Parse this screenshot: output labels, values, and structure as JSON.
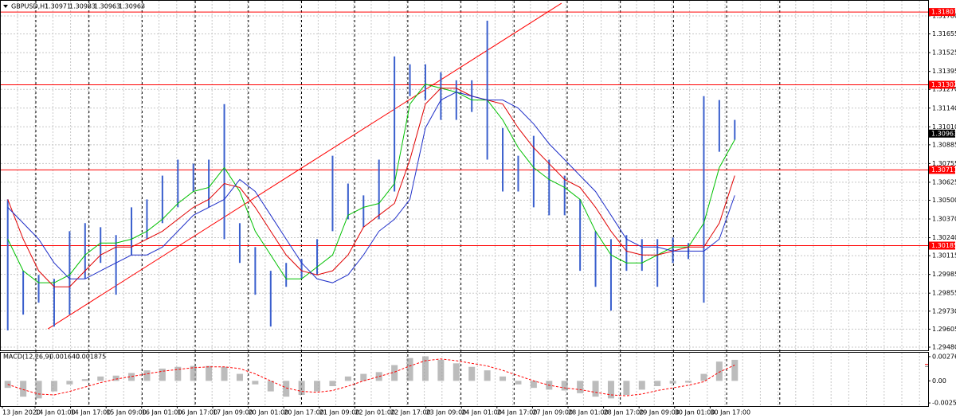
{
  "chart_data": {
    "type": "ohlc",
    "header": {
      "symbol": "GBPUSD,H1",
      "ohlc": [
        1.30971,
        1.30983,
        1.30963,
        1.30963
      ]
    },
    "xlim": [
      0,
      60
    ],
    "ylim": [
      1.29458,
      1.31885
    ],
    "yticks": [
      {
        "value": 1.3178,
        "label": "1.31780"
      },
      1.31655,
      1.31525,
      1.31395,
      {
        "value": 1.3127,
        "label": "1.31270"
      },
      {
        "value": 1.3114,
        "label": "1.31140"
      },
      {
        "value": 1.3101,
        "label": "1.31010"
      },
      1.30885,
      1.30755,
      1.30625,
      {
        "value": 1.305,
        "label": "1.30500"
      },
      {
        "value": 1.3037,
        "label": "1.30370"
      },
      {
        "value": 1.3024,
        "label": "1.30240"
      },
      1.30115,
      1.29985,
      1.29855,
      {
        "value": 1.2973,
        "label": "1.29730"
      },
      1.29605,
      {
        "value": 1.2948,
        "label": "1.29480"
      }
    ],
    "time_labels": [
      "13 Jan 2020",
      "14 Jan 01:00",
      "14 Jan 17:00",
      "15 Jan 09:00",
      "16 Jan 01:00",
      "16 Jan 17:00",
      "17 Jan 09:00",
      "20 Jan 01:00",
      "20 Jan 17:00",
      "21 Jan 09:00",
      "22 Jan 01:00",
      "22 Jan 17:00",
      "23 Jan 09:00",
      "24 Jan 01:00",
      "24 Jan 17:00",
      "27 Jan 09:00",
      "28 Jan 01:00",
      "28 Jan 17:00",
      "29 Jan 09:00",
      "30 Jan 01:00",
      "30 Jan 17:00"
    ],
    "bar_color": "#3a5fcd",
    "highs": [
      1.30506,
      1.3001,
      1.29982,
      1.29954,
      1.30285,
      1.30341,
      1.30313,
      1.30258,
      1.30451,
      1.30506,
      1.30671,
      1.30782,
      1.30754,
      1.30782,
      1.31168,
      1.30341,
      1.30175,
      1.3001,
      1.30065,
      1.30092,
      1.3023,
      1.30809,
      1.30616,
      1.30534,
      1.30782,
      1.31499,
      1.31444,
      1.31444,
      1.31389,
      1.31333,
      1.31333,
      1.31747,
      1.31002,
      1.30809,
      1.30947,
      1.30782,
      1.30671,
      1.30506,
      1.30285,
      1.3023,
      1.30258,
      1.3023,
      1.3023,
      1.30241,
      1.30203,
      1.31223,
      1.31196,
      1.31058
    ],
    "lows": [
      1.29596,
      1.29706,
      1.29789,
      1.29623,
      1.29706,
      1.29954,
      1.30065,
      1.29844,
      1.3012,
      1.3023,
      1.30341,
      1.30451,
      1.30561,
      1.30451,
      1.3023,
      1.30065,
      1.29844,
      1.29623,
      1.29899,
      1.29954,
      1.29982,
      1.30285,
      1.30368,
      1.30313,
      1.30368,
      1.30561,
      1.31223,
      1.31196,
      1.31058,
      1.31058,
      1.31113,
      1.30782,
      1.30561,
      1.30561,
      1.30451,
      1.30396,
      1.30396,
      1.3001,
      1.29899,
      1.29734,
      1.3001,
      1.3001,
      1.29899,
      1.30065,
      1.30092,
      1.29789,
      1.30837,
      1.3092
    ],
    "moving_averages": [
      {
        "color": "#00c000",
        "values": [
          1.3023,
          1.3001,
          1.29927,
          1.29927,
          1.29982,
          1.3012,
          1.30203,
          1.30203,
          1.3023,
          1.30285,
          1.30368,
          1.30478,
          1.30561,
          1.30589,
          1.30727,
          1.30561,
          1.30285,
          1.3012,
          1.29954,
          1.29954,
          1.30037,
          1.3012,
          1.30396,
          1.30451,
          1.30478,
          1.30616,
          1.31168,
          1.31306,
          1.31278,
          1.31251,
          1.31196,
          1.31196,
          1.31058,
          1.30865,
          1.30727,
          1.30644,
          1.30589,
          1.30506,
          1.30285,
          1.3012,
          1.30065,
          1.30065,
          1.3012,
          1.30175,
          1.30175,
          1.30341,
          1.30727,
          1.3092
        ]
      },
      {
        "color": "#e00000",
        "values": [
          1.30506,
          1.3023,
          1.3001,
          1.29899,
          1.29899,
          1.3001,
          1.3012,
          1.30175,
          1.30175,
          1.3023,
          1.30285,
          1.30368,
          1.30451,
          1.30506,
          1.30616,
          1.30589,
          1.30451,
          1.30285,
          1.3012,
          1.3001,
          1.29982,
          1.3001,
          1.3012,
          1.30313,
          1.30396,
          1.30478,
          1.30782,
          1.31168,
          1.31278,
          1.31278,
          1.31223,
          1.31196,
          1.31168,
          1.31002,
          1.30865,
          1.30754,
          1.30644,
          1.30589,
          1.30451,
          1.30285,
          1.30147,
          1.3012,
          1.3012,
          1.30147,
          1.30175,
          1.30175,
          1.30341,
          1.30671
        ]
      },
      {
        "color": "#1f2fc8",
        "values": [
          1.30451,
          1.30341,
          1.3023,
          1.30065,
          1.29954,
          1.29954,
          1.3001,
          1.30065,
          1.3012,
          1.3012,
          1.30175,
          1.30285,
          1.30396,
          1.30451,
          1.30506,
          1.30644,
          1.30561,
          1.30396,
          1.3023,
          1.30065,
          1.29954,
          1.29927,
          1.29982,
          1.3012,
          1.30285,
          1.30368,
          1.30506,
          1.31002,
          1.31196,
          1.31251,
          1.31223,
          1.31196,
          1.31196,
          1.3114,
          1.3103,
          1.30892,
          1.30782,
          1.30671,
          1.30561,
          1.30396,
          1.3023,
          1.30175,
          1.30175,
          1.30147,
          1.30147,
          1.30147,
          1.3023,
          1.30534
        ]
      }
    ],
    "levels": [
      1.31807,
      1.31302,
      1.30711,
      1.30185
    ],
    "level_color": "#ff0000",
    "last_price": 1.30963,
    "trendline": {
      "x": [
        3.1,
        36.3
      ],
      "y": [
        1.29607,
        1.31868
      ],
      "color": "#ff0000"
    },
    "macd": {
      "title": "MACD(12,26,9)",
      "readout": [
        0.00164,
        0.001875
      ],
      "readout_labels": [
        "0.001640",
        "0.001875"
      ],
      "ylim": [
        -0.00287,
        0.00321
      ],
      "yticks": [
        0.002766,
        {
          "value": 0,
          "label": "0.00"
        },
        -0.002518
      ],
      "histogram_color": "#a0a0a0",
      "signal_color": "#ff0000",
      "histogram": [
        -0.0008,
        -0.0018,
        -0.002,
        -0.0012,
        -0.0004,
        0.0002,
        0.0005,
        0.0006,
        0.0009,
        0.0012,
        0.0014,
        0.0016,
        0.0017,
        0.0017,
        0.0016,
        0.0008,
        -0.0004,
        -0.0012,
        -0.0018,
        -0.0016,
        -0.0012,
        -0.0006,
        0.0005,
        0.0008,
        0.001,
        0.0018,
        0.0026,
        0.0028,
        0.0024,
        0.002,
        0.0016,
        0.0012,
        0.0005,
        -0.0004,
        -0.0008,
        -0.001,
        -0.0011,
        -0.0014,
        -0.0018,
        -0.002,
        -0.0016,
        -0.001,
        -0.0006,
        -0.0003,
        -0.0002,
        0.0008,
        0.0022,
        0.0024
      ],
      "signal": [
        -0.0004,
        -0.001,
        -0.0015,
        -0.0016,
        -0.0012,
        -0.0007,
        -0.0002,
        0.0002,
        0.0005,
        0.0008,
        0.0011,
        0.0013,
        0.0015,
        0.0016,
        0.0016,
        0.0014,
        0.0008,
        0,
        -0.0008,
        -0.0012,
        -0.0013,
        -0.0011,
        -0.0006,
        0,
        0.0005,
        0.001,
        0.0017,
        0.0023,
        0.0025,
        0.0023,
        0.002,
        0.0017,
        0.0012,
        0.0006,
        0,
        -0.0005,
        -0.0008,
        -0.001,
        -0.0013,
        -0.0016,
        -0.0017,
        -0.0015,
        -0.0011,
        -0.0008,
        -0.0005,
        -0.0001,
        0.001,
        0.0018
      ]
    }
  }
}
